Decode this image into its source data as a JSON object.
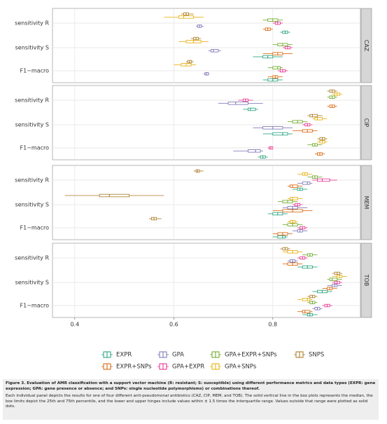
{
  "chart_data": {
    "type": "box",
    "panels": [
      "CAZ",
      "CIP",
      "MEM",
      "TOB"
    ],
    "categories": [
      "sensitivity R",
      "sensitivity S",
      "F1−macro"
    ],
    "xlim": [
      0.355,
      0.977
    ],
    "xticks": [
      0.4,
      0.6,
      0.8
    ],
    "grid": true,
    "legend": "bottom",
    "series": [
      {
        "name": "EXPR",
        "color": "#1b9e77",
        "boxes": [
          [
            0.815,
            0.82,
            0.825,
            0.83,
            0.835
          ],
          [
            0.76,
            0.78,
            0.79,
            0.8,
            0.82
          ],
          [
            0.78,
            0.79,
            0.8,
            0.81,
            0.82
          ],
          [
            0.74,
            0.75,
            0.755,
            0.765,
            0.77
          ],
          [
            0.78,
            0.8,
            0.82,
            0.83,
            0.84
          ],
          [
            0.77,
            0.775,
            0.78,
            0.785,
            0.79
          ],
          [
            0.84,
            0.85,
            0.855,
            0.86,
            0.87
          ],
          [
            0.79,
            0.8,
            0.81,
            0.82,
            0.83
          ],
          [
            0.8,
            0.81,
            0.82,
            0.825,
            0.83
          ],
          [
            0.85,
            0.86,
            0.87,
            0.88,
            0.89
          ],
          [
            0.88,
            0.89,
            0.9,
            0.91,
            0.92
          ],
          [
            0.86,
            0.87,
            0.875,
            0.88,
            0.89
          ]
        ]
      },
      {
        "name": "EXPR+SNPs",
        "color": "#d95f02",
        "boxes": [
          [
            0.78,
            0.785,
            0.79,
            0.795,
            0.8
          ],
          [
            0.78,
            0.8,
            0.81,
            0.82,
            0.84
          ],
          [
            0.79,
            0.8,
            0.805,
            0.81,
            0.82
          ],
          [
            0.91,
            0.915,
            0.92,
            0.925,
            0.93
          ],
          [
            0.84,
            0.86,
            0.87,
            0.88,
            0.89
          ],
          [
            0.885,
            0.89,
            0.895,
            0.9,
            0.905
          ],
          [
            0.83,
            0.835,
            0.84,
            0.85,
            0.86
          ],
          [
            0.8,
            0.82,
            0.84,
            0.86,
            0.88
          ],
          [
            0.8,
            0.81,
            0.82,
            0.83,
            0.84
          ],
          [
            0.82,
            0.83,
            0.84,
            0.85,
            0.86
          ],
          [
            0.9,
            0.91,
            0.915,
            0.92,
            0.93
          ],
          [
            0.85,
            0.86,
            0.865,
            0.875,
            0.88
          ]
        ]
      },
      {
        "name": "GPA",
        "color": "#7570b3",
        "boxes": [
          [
            0.645,
            0.648,
            0.652,
            0.656,
            0.66
          ],
          [
            0.67,
            0.675,
            0.68,
            0.69,
            0.695
          ],
          [
            0.66,
            0.663,
            0.666,
            0.67,
            0.672
          ],
          [
            0.69,
            0.71,
            0.725,
            0.75,
            0.78
          ],
          [
            0.76,
            0.78,
            0.8,
            0.82,
            0.84
          ],
          [
            0.72,
            0.75,
            0.765,
            0.775,
            0.78
          ],
          [
            0.85,
            0.86,
            0.87,
            0.875,
            0.88
          ],
          [
            0.82,
            0.83,
            0.84,
            0.85,
            0.87
          ],
          [
            0.84,
            0.85,
            0.855,
            0.86,
            0.87
          ],
          [
            0.83,
            0.835,
            0.84,
            0.845,
            0.85
          ],
          [
            0.91,
            0.92,
            0.925,
            0.93,
            0.94
          ],
          [
            0.88,
            0.885,
            0.89,
            0.895,
            0.9
          ]
        ]
      },
      {
        "name": "GPA+EXPR",
        "color": "#e7298a",
        "boxes": [
          [
            0.8,
            0.805,
            0.81,
            0.815,
            0.82
          ],
          [
            0.82,
            0.825,
            0.83,
            0.835,
            0.84
          ],
          [
            0.81,
            0.815,
            0.82,
            0.825,
            0.83
          ],
          [
            0.73,
            0.74,
            0.745,
            0.75,
            0.76
          ],
          [
            0.86,
            0.865,
            0.87,
            0.875,
            0.88
          ],
          [
            0.79,
            0.793,
            0.796,
            0.8,
            0.8
          ],
          [
            0.88,
            0.89,
            0.9,
            0.915,
            0.93
          ],
          [
            0.84,
            0.845,
            0.85,
            0.855,
            0.86
          ],
          [
            0.85,
            0.855,
            0.86,
            0.865,
            0.87
          ],
          [
            0.85,
            0.855,
            0.86,
            0.865,
            0.87
          ],
          [
            0.92,
            0.925,
            0.93,
            0.935,
            0.94
          ],
          [
            0.9,
            0.905,
            0.91,
            0.915,
            0.92
          ]
        ]
      },
      {
        "name": "GPA+EXPR+SNPs",
        "color": "#66a61e",
        "boxes": [
          [
            0.78,
            0.79,
            0.8,
            0.81,
            0.82
          ],
          [
            0.8,
            0.81,
            0.82,
            0.83,
            0.84
          ],
          [
            0.79,
            0.8,
            0.81,
            0.815,
            0.82
          ],
          [
            0.91,
            0.915,
            0.92,
            0.925,
            0.93
          ],
          [
            0.83,
            0.84,
            0.85,
            0.86,
            0.87
          ],
          [
            0.87,
            0.88,
            0.885,
            0.89,
            0.9
          ],
          [
            0.87,
            0.88,
            0.885,
            0.89,
            0.9
          ],
          [
            0.81,
            0.82,
            0.83,
            0.84,
            0.85
          ],
          [
            0.82,
            0.83,
            0.84,
            0.85,
            0.86
          ],
          [
            0.86,
            0.87,
            0.875,
            0.88,
            0.89
          ],
          [
            0.91,
            0.915,
            0.92,
            0.93,
            0.94
          ],
          [
            0.87,
            0.875,
            0.88,
            0.885,
            0.89
          ]
        ]
      },
      {
        "name": "GPA+SNPs",
        "color": "#e6ab02",
        "boxes": [
          [
            0.58,
            0.61,
            0.62,
            0.64,
            0.66
          ],
          [
            0.61,
            0.625,
            0.64,
            0.655,
            0.67
          ],
          [
            0.6,
            0.615,
            0.625,
            0.635,
            0.645
          ],
          [
            0.92,
            0.925,
            0.93,
            0.935,
            0.94
          ],
          [
            0.88,
            0.885,
            0.89,
            0.9,
            0.91
          ],
          [
            0.89,
            0.895,
            0.9,
            0.905,
            0.91
          ],
          [
            0.85,
            0.86,
            0.865,
            0.87,
            0.88
          ],
          [
            0.83,
            0.835,
            0.84,
            0.85,
            0.86
          ],
          [
            0.83,
            0.835,
            0.84,
            0.845,
            0.85
          ],
          [
            0.82,
            0.83,
            0.84,
            0.85,
            0.86
          ],
          [
            0.92,
            0.93,
            0.935,
            0.94,
            0.95
          ],
          [
            0.85,
            0.86,
            0.87,
            0.875,
            0.88
          ]
        ]
      },
      {
        "name": "SNPS",
        "color": "#a6761d",
        "boxes": [
          [
            0.615,
            0.62,
            0.625,
            0.63,
            0.64
          ],
          [
            0.635,
            0.64,
            0.645,
            0.65,
            0.655
          ],
          [
            0.625,
            0.628,
            0.632,
            0.636,
            0.64
          ],
          [
            0.91,
            0.915,
            0.92,
            0.925,
            0.93
          ],
          [
            0.87,
            0.875,
            0.88,
            0.89,
            0.9
          ],
          [
            0.89,
            0.895,
            0.9,
            0.905,
            0.91
          ],
          [
            0.64,
            0.645,
            0.648,
            0.652,
            0.66
          ],
          [
            0.38,
            0.45,
            0.47,
            0.51,
            0.58
          ],
          [
            0.55,
            0.555,
            0.56,
            0.565,
            0.575
          ],
          [
            0.815,
            0.82,
            0.825,
            0.83,
            0.835
          ],
          [
            0.92,
            0.925,
            0.93,
            0.935,
            0.94
          ],
          [
            0.87,
            0.875,
            0.88,
            0.885,
            0.89
          ]
        ]
      }
    ],
    "caption_title": "Figure 3.   Evaluation of AMR classification with a support vector machine (R: resistant; S: susceptible) using different performance metrics and data types (EXPR: gene expression; GPA: gene presence or absence; and SNPs: single nucleotide polymorphisms) or combinations thereof.",
    "caption_text": "Each individual panel depicts the results for one of four different anti-pseudomonal antibiotics (CAZ, CIP, MEM, and TOB). The solid vertical line in the box plots represents the median, the box limits depict the 25th and 75th percentile, and the lower and upper hinges include values within ± 1.5 times the interquartile range. Values outside that range were plotted as solid dots."
  }
}
